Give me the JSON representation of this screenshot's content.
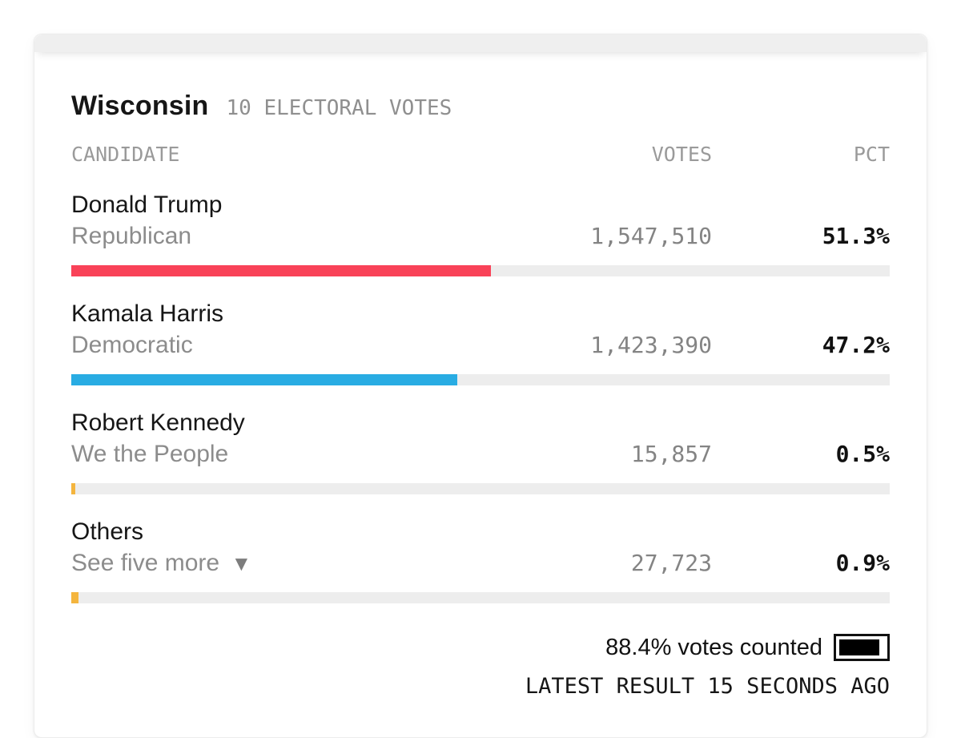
{
  "header": {
    "state": "Wisconsin",
    "electoral_votes": "10 ELECTORAL VOTES"
  },
  "table": {
    "headers": {
      "candidate": "CANDIDATE",
      "votes": "VOTES",
      "pct": "PCT"
    },
    "rows": [
      {
        "name": "Donald Trump",
        "party": "Republican",
        "votes": "1,547,510",
        "pct": "51.3%",
        "bar_pct": 51.3,
        "bar_color": "#F94258"
      },
      {
        "name": "Kamala Harris",
        "party": "Democratic",
        "votes": "1,423,390",
        "pct": "47.2%",
        "bar_pct": 47.2,
        "bar_color": "#29ACE3"
      },
      {
        "name": "Robert Kennedy",
        "party": "We the People",
        "votes": "15,857",
        "pct": "0.5%",
        "bar_pct": 0.5,
        "bar_color": "#F4B53E"
      },
      {
        "name": "Others",
        "party": "See five more",
        "caret": "▼",
        "votes": "27,723",
        "pct": "0.9%",
        "bar_pct": 0.9,
        "bar_color": "#F4B53E"
      }
    ]
  },
  "footer": {
    "votes_counted_label": "88.4% votes counted",
    "counted_pct": 88.4,
    "latest_result": "LATEST RESULT 15 SECONDS AGO"
  },
  "colors": {
    "republican_bar": "#F94258",
    "democratic_bar": "#29ACE3",
    "other_bar": "#F4B53E",
    "bar_track": "#EDEDED"
  },
  "chart_data": {
    "type": "bar",
    "title": "Wisconsin — 10 Electoral Votes",
    "categories": [
      "Donald Trump (Republican)",
      "Kamala Harris (Democratic)",
      "Robert Kennedy (We the People)",
      "Others"
    ],
    "series": [
      {
        "name": "Votes",
        "values": [
          1547510,
          1423390,
          15857,
          27723
        ]
      },
      {
        "name": "Percent of vote",
        "values": [
          51.3,
          47.2,
          0.5,
          0.9
        ]
      }
    ],
    "xlabel": "",
    "ylabel": "",
    "xlim": [
      0,
      100
    ],
    "bar_colors": [
      "#F94258",
      "#29ACE3",
      "#F4B53E",
      "#F4B53E"
    ],
    "legend": "none",
    "grid": false,
    "annotations": [
      "88.4% votes counted",
      "LATEST RESULT 15 SECONDS AGO"
    ]
  }
}
